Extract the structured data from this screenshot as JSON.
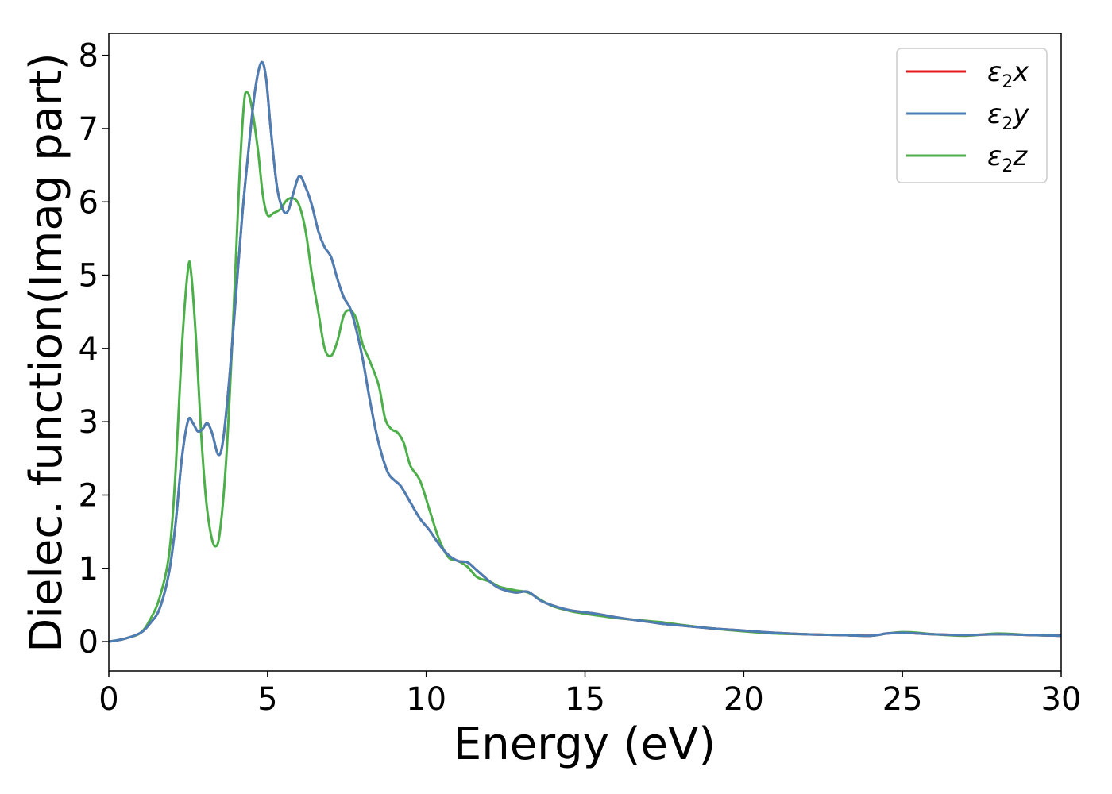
{
  "chart_data": {
    "type": "line",
    "xlabel": "Energy (eV)",
    "ylabel": "Dielec. function(Imag part)",
    "xlim": [
      0,
      30
    ],
    "ylim": [
      -0.4,
      8.3
    ],
    "xticks": [
      0,
      5,
      10,
      15,
      20,
      25,
      30
    ],
    "yticks": [
      0,
      1,
      2,
      3,
      4,
      5,
      6,
      7,
      8
    ],
    "grid": false,
    "legend_position": "top-right",
    "series": [
      {
        "name": "x",
        "color": "#e41a1c",
        "points": [
          [
            0,
            0.0
          ],
          [
            0.5,
            0.04
          ],
          [
            1.0,
            0.12
          ],
          [
            1.3,
            0.25
          ],
          [
            1.6,
            0.45
          ],
          [
            1.9,
            0.95
          ],
          [
            2.1,
            1.6
          ],
          [
            2.3,
            2.5
          ],
          [
            2.5,
            3.02
          ],
          [
            2.65,
            2.98
          ],
          [
            2.8,
            2.87
          ],
          [
            2.95,
            2.9
          ],
          [
            3.1,
            2.98
          ],
          [
            3.25,
            2.85
          ],
          [
            3.45,
            2.55
          ],
          [
            3.6,
            2.75
          ],
          [
            3.8,
            3.6
          ],
          [
            4.0,
            4.7
          ],
          [
            4.2,
            5.8
          ],
          [
            4.4,
            6.7
          ],
          [
            4.6,
            7.5
          ],
          [
            4.8,
            7.9
          ],
          [
            4.95,
            7.7
          ],
          [
            5.1,
            7.0
          ],
          [
            5.3,
            6.2
          ],
          [
            5.5,
            5.88
          ],
          [
            5.65,
            5.88
          ],
          [
            5.8,
            6.1
          ],
          [
            6.0,
            6.35
          ],
          [
            6.2,
            6.2
          ],
          [
            6.4,
            5.95
          ],
          [
            6.6,
            5.6
          ],
          [
            6.8,
            5.38
          ],
          [
            7.0,
            5.25
          ],
          [
            7.2,
            4.95
          ],
          [
            7.4,
            4.7
          ],
          [
            7.6,
            4.55
          ],
          [
            7.8,
            4.25
          ],
          [
            8.0,
            3.85
          ],
          [
            8.2,
            3.35
          ],
          [
            8.4,
            2.9
          ],
          [
            8.6,
            2.55
          ],
          [
            8.8,
            2.3
          ],
          [
            9.0,
            2.2
          ],
          [
            9.2,
            2.12
          ],
          [
            9.5,
            1.9
          ],
          [
            9.8,
            1.68
          ],
          [
            10.1,
            1.52
          ],
          [
            10.4,
            1.33
          ],
          [
            10.7,
            1.18
          ],
          [
            11.0,
            1.1
          ],
          [
            11.3,
            1.08
          ],
          [
            11.6,
            0.97
          ],
          [
            12.0,
            0.82
          ],
          [
            12.3,
            0.73
          ],
          [
            12.8,
            0.67
          ],
          [
            13.2,
            0.68
          ],
          [
            13.6,
            0.56
          ],
          [
            14.0,
            0.49
          ],
          [
            14.5,
            0.43
          ],
          [
            15.0,
            0.4
          ],
          [
            15.5,
            0.37
          ],
          [
            16.0,
            0.33
          ],
          [
            17.0,
            0.27
          ],
          [
            17.5,
            0.24
          ],
          [
            18.0,
            0.22
          ],
          [
            19.0,
            0.18
          ],
          [
            20.0,
            0.15
          ],
          [
            21.0,
            0.12
          ],
          [
            22.0,
            0.1
          ],
          [
            23.0,
            0.09
          ],
          [
            24.0,
            0.08
          ],
          [
            24.5,
            0.11
          ],
          [
            25.0,
            0.12
          ],
          [
            25.5,
            0.11
          ],
          [
            26.0,
            0.1
          ],
          [
            27.0,
            0.09
          ],
          [
            28.0,
            0.1
          ],
          [
            29.0,
            0.09
          ],
          [
            30.0,
            0.08
          ]
        ]
      },
      {
        "name": "y",
        "color": "#4a7fb5",
        "points": [
          [
            0,
            0.0
          ],
          [
            0.5,
            0.04
          ],
          [
            1.0,
            0.12
          ],
          [
            1.3,
            0.25
          ],
          [
            1.6,
            0.45
          ],
          [
            1.9,
            0.95
          ],
          [
            2.1,
            1.6
          ],
          [
            2.3,
            2.5
          ],
          [
            2.5,
            3.02
          ],
          [
            2.65,
            2.98
          ],
          [
            2.8,
            2.87
          ],
          [
            2.95,
            2.9
          ],
          [
            3.1,
            2.98
          ],
          [
            3.25,
            2.85
          ],
          [
            3.45,
            2.55
          ],
          [
            3.6,
            2.75
          ],
          [
            3.8,
            3.6
          ],
          [
            4.0,
            4.7
          ],
          [
            4.2,
            5.8
          ],
          [
            4.4,
            6.7
          ],
          [
            4.6,
            7.5
          ],
          [
            4.8,
            7.9
          ],
          [
            4.95,
            7.7
          ],
          [
            5.1,
            7.0
          ],
          [
            5.3,
            6.2
          ],
          [
            5.5,
            5.88
          ],
          [
            5.65,
            5.88
          ],
          [
            5.8,
            6.1
          ],
          [
            6.0,
            6.35
          ],
          [
            6.2,
            6.2
          ],
          [
            6.4,
            5.95
          ],
          [
            6.6,
            5.6
          ],
          [
            6.8,
            5.38
          ],
          [
            7.0,
            5.25
          ],
          [
            7.2,
            4.95
          ],
          [
            7.4,
            4.7
          ],
          [
            7.6,
            4.55
          ],
          [
            7.8,
            4.25
          ],
          [
            8.0,
            3.85
          ],
          [
            8.2,
            3.35
          ],
          [
            8.4,
            2.9
          ],
          [
            8.6,
            2.55
          ],
          [
            8.8,
            2.3
          ],
          [
            9.0,
            2.2
          ],
          [
            9.2,
            2.12
          ],
          [
            9.5,
            1.9
          ],
          [
            9.8,
            1.68
          ],
          [
            10.1,
            1.52
          ],
          [
            10.4,
            1.33
          ],
          [
            10.7,
            1.18
          ],
          [
            11.0,
            1.1
          ],
          [
            11.3,
            1.08
          ],
          [
            11.6,
            0.97
          ],
          [
            12.0,
            0.82
          ],
          [
            12.3,
            0.73
          ],
          [
            12.8,
            0.67
          ],
          [
            13.2,
            0.68
          ],
          [
            13.6,
            0.56
          ],
          [
            14.0,
            0.49
          ],
          [
            14.5,
            0.43
          ],
          [
            15.0,
            0.4
          ],
          [
            15.5,
            0.37
          ],
          [
            16.0,
            0.33
          ],
          [
            17.0,
            0.27
          ],
          [
            17.5,
            0.24
          ],
          [
            18.0,
            0.22
          ],
          [
            19.0,
            0.18
          ],
          [
            20.0,
            0.15
          ],
          [
            21.0,
            0.12
          ],
          [
            22.0,
            0.1
          ],
          [
            23.0,
            0.09
          ],
          [
            24.0,
            0.08
          ],
          [
            24.5,
            0.11
          ],
          [
            25.0,
            0.12
          ],
          [
            25.5,
            0.11
          ],
          [
            26.0,
            0.1
          ],
          [
            27.0,
            0.09
          ],
          [
            28.0,
            0.1
          ],
          [
            29.0,
            0.09
          ],
          [
            30.0,
            0.08
          ]
        ]
      },
      {
        "name": "z",
        "color": "#4daf4a",
        "points": [
          [
            0,
            0.0
          ],
          [
            0.5,
            0.04
          ],
          [
            1.0,
            0.12
          ],
          [
            1.3,
            0.3
          ],
          [
            1.6,
            0.6
          ],
          [
            1.9,
            1.2
          ],
          [
            2.1,
            2.3
          ],
          [
            2.3,
            4.0
          ],
          [
            2.5,
            5.1
          ],
          [
            2.6,
            5.0
          ],
          [
            2.75,
            4.1
          ],
          [
            2.9,
            2.9
          ],
          [
            3.05,
            2.0
          ],
          [
            3.2,
            1.5
          ],
          [
            3.35,
            1.3
          ],
          [
            3.5,
            1.5
          ],
          [
            3.7,
            2.5
          ],
          [
            3.9,
            4.2
          ],
          [
            4.1,
            6.2
          ],
          [
            4.25,
            7.3
          ],
          [
            4.35,
            7.5
          ],
          [
            4.5,
            7.3
          ],
          [
            4.7,
            6.7
          ],
          [
            4.85,
            6.1
          ],
          [
            5.0,
            5.82
          ],
          [
            5.2,
            5.85
          ],
          [
            5.4,
            5.9
          ],
          [
            5.6,
            6.02
          ],
          [
            5.8,
            6.05
          ],
          [
            6.0,
            5.95
          ],
          [
            6.2,
            5.6
          ],
          [
            6.4,
            5.0
          ],
          [
            6.6,
            4.5
          ],
          [
            6.8,
            4.0
          ],
          [
            7.0,
            3.9
          ],
          [
            7.2,
            4.1
          ],
          [
            7.4,
            4.45
          ],
          [
            7.6,
            4.52
          ],
          [
            7.8,
            4.4
          ],
          [
            8.0,
            4.05
          ],
          [
            8.2,
            3.85
          ],
          [
            8.5,
            3.5
          ],
          [
            8.7,
            3.05
          ],
          [
            8.9,
            2.9
          ],
          [
            9.1,
            2.85
          ],
          [
            9.3,
            2.7
          ],
          [
            9.5,
            2.4
          ],
          [
            9.8,
            2.2
          ],
          [
            10.1,
            1.8
          ],
          [
            10.4,
            1.4
          ],
          [
            10.7,
            1.15
          ],
          [
            11.0,
            1.1
          ],
          [
            11.3,
            1.02
          ],
          [
            11.6,
            0.88
          ],
          [
            12.0,
            0.82
          ],
          [
            12.3,
            0.75
          ],
          [
            12.8,
            0.7
          ],
          [
            13.2,
            0.67
          ],
          [
            13.6,
            0.57
          ],
          [
            14.0,
            0.48
          ],
          [
            14.5,
            0.42
          ],
          [
            15.0,
            0.38
          ],
          [
            15.5,
            0.35
          ],
          [
            16.0,
            0.32
          ],
          [
            17.0,
            0.28
          ],
          [
            17.5,
            0.26
          ],
          [
            18.0,
            0.23
          ],
          [
            19.0,
            0.18
          ],
          [
            20.0,
            0.14
          ],
          [
            21.0,
            0.11
          ],
          [
            22.0,
            0.1
          ],
          [
            23.0,
            0.09
          ],
          [
            24.0,
            0.08
          ],
          [
            24.5,
            0.11
          ],
          [
            25.0,
            0.13
          ],
          [
            25.5,
            0.12
          ],
          [
            26.0,
            0.1
          ],
          [
            27.0,
            0.08
          ],
          [
            28.0,
            0.11
          ],
          [
            29.0,
            0.09
          ],
          [
            30.0,
            0.08
          ]
        ]
      }
    ]
  },
  "legend": {
    "items": [
      {
        "base": "ε",
        "sub": "2",
        "suffix": "x",
        "color": "#e41a1c"
      },
      {
        "base": "ε",
        "sub": "2",
        "suffix": "y",
        "color": "#4a7fb5"
      },
      {
        "base": "ε",
        "sub": "2",
        "suffix": "z",
        "color": "#4daf4a"
      }
    ]
  }
}
